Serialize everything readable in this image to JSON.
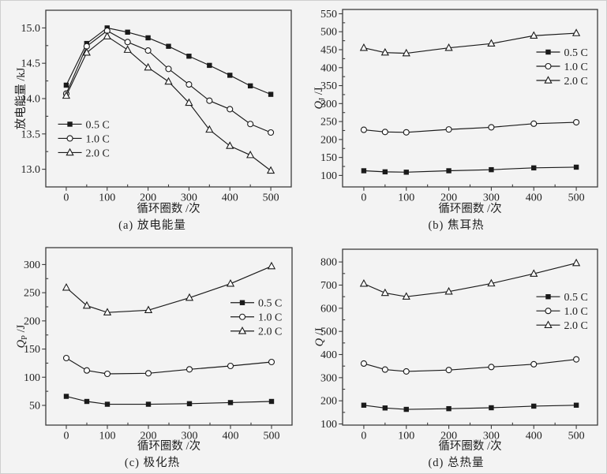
{
  "colors": {
    "background": "#f3f3f3",
    "line": "#1a1a1a",
    "frame": "#3c3c3c",
    "text": "#1f1f1f",
    "open_marker_fill": "#ffffff"
  },
  "chart_data": [
    {
      "type": "line",
      "caption": "(a) 放电能量",
      "xlabel": "循环圈数 /次",
      "ylabel": "放电能量 /kJ",
      "ylabel_rich": [
        {
          "t": "放电能量 /kJ"
        }
      ],
      "x": [
        0,
        50,
        100,
        150,
        200,
        250,
        300,
        350,
        400,
        450,
        500
      ],
      "xticks": [
        0,
        100,
        200,
        300,
        400,
        500
      ],
      "xminor_step": 50,
      "yticks": [
        13.0,
        13.5,
        14.0,
        14.5,
        15.0
      ],
      "yminor_step": 0.25,
      "ytick_decimals": 1,
      "xlim": [
        -50,
        550
      ],
      "ylim": [
        12.75,
        15.25
      ],
      "grid": false,
      "legend_position": {
        "x": 0.05,
        "y": 0.645
      },
      "series": [
        {
          "name": "0.5 C",
          "marker": "square-filled",
          "values": [
            14.19,
            14.78,
            15.0,
            14.94,
            14.86,
            14.74,
            14.6,
            14.47,
            14.33,
            14.18,
            14.06
          ]
        },
        {
          "name": "1.0 C",
          "marker": "circle-open",
          "values": [
            14.07,
            14.74,
            14.96,
            14.8,
            14.68,
            14.42,
            14.2,
            13.97,
            13.85,
            13.64,
            13.52
          ]
        },
        {
          "name": "2.0 C",
          "marker": "triangle-open",
          "values": [
            14.04,
            14.65,
            14.88,
            14.69,
            14.44,
            14.24,
            13.94,
            13.56,
            13.33,
            13.2,
            12.98
          ]
        }
      ]
    },
    {
      "type": "line",
      "caption": "(b) 焦耳热",
      "xlabel": "循环圈数 /次",
      "ylabel": "QJ /J",
      "ylabel_rich": [
        {
          "t": "Q",
          "i": true
        },
        {
          "t": "J",
          "sub": true
        },
        {
          "t": " /J"
        }
      ],
      "x": [
        0,
        50,
        100,
        200,
        300,
        400,
        500
      ],
      "xticks": [
        0,
        100,
        200,
        300,
        400,
        500
      ],
      "xminor_step": 50,
      "yticks": [
        100,
        150,
        200,
        250,
        300,
        350,
        400,
        450,
        500,
        550
      ],
      "yminor_step": 25,
      "ytick_decimals": 0,
      "xlim": [
        -50,
        550
      ],
      "ylim": [
        68,
        562
      ],
      "grid": false,
      "legend_position": {
        "x": 0.76,
        "y": 0.24
      },
      "series": [
        {
          "name": "0.5 C",
          "marker": "square-filled",
          "values": [
            113,
            110,
            109,
            113,
            116,
            121,
            123
          ]
        },
        {
          "name": "1.0 C",
          "marker": "circle-open",
          "values": [
            227,
            221,
            220,
            228,
            234,
            244,
            248
          ]
        },
        {
          "name": "2.0 C",
          "marker": "triangle-open",
          "values": [
            455,
            442,
            440,
            455,
            467,
            489,
            496
          ]
        }
      ]
    },
    {
      "type": "line",
      "caption": "(c) 极化热",
      "xlabel": "循环圈数 /次",
      "ylabel": "QP /J",
      "ylabel_rich": [
        {
          "t": "Q",
          "i": true
        },
        {
          "t": "P",
          "sub": true
        },
        {
          "t": " /J"
        }
      ],
      "x": [
        0,
        50,
        100,
        200,
        300,
        400,
        500
      ],
      "xticks": [
        0,
        100,
        200,
        300,
        400,
        500
      ],
      "xminor_step": 50,
      "yticks": [
        50,
        100,
        150,
        200,
        250,
        300
      ],
      "yminor_step": 25,
      "ytick_decimals": 0,
      "xlim": [
        -50,
        550
      ],
      "ylim": [
        15,
        330
      ],
      "grid": false,
      "legend_position": {
        "x": 0.75,
        "y": 0.31
      },
      "series": [
        {
          "name": "0.5 C",
          "marker": "square-filled",
          "values": [
            66,
            57,
            52,
            52,
            53,
            55,
            57
          ]
        },
        {
          "name": "1.0 C",
          "marker": "circle-open",
          "values": [
            134,
            112,
            106,
            107,
            114,
            120,
            127
          ]
        },
        {
          "name": "2.0 C",
          "marker": "triangle-open",
          "values": [
            259,
            227,
            215,
            219,
            241,
            266,
            297
          ]
        }
      ]
    },
    {
      "type": "line",
      "caption": "(d) 总热量",
      "xlabel": "循环圈数 /次",
      "ylabel": "Q /J",
      "ylabel_rich": [
        {
          "t": "Q",
          "i": true
        },
        {
          "t": " /J"
        }
      ],
      "x": [
        0,
        50,
        100,
        200,
        300,
        400,
        500
      ],
      "xticks": [
        0,
        100,
        200,
        300,
        400,
        500
      ],
      "xminor_step": 50,
      "yticks": [
        100,
        200,
        300,
        400,
        500,
        600,
        700,
        800
      ],
      "yminor_step": 50,
      "ytick_decimals": 0,
      "xlim": [
        -50,
        550
      ],
      "ylim": [
        95,
        855
      ],
      "grid": false,
      "legend_position": {
        "x": 0.76,
        "y": 0.27
      },
      "series": [
        {
          "name": "0.5 C",
          "marker": "square-filled",
          "values": [
            181,
            169,
            163,
            166,
            170,
            177,
            181
          ]
        },
        {
          "name": "1.0 C",
          "marker": "circle-open",
          "values": [
            361,
            335,
            327,
            333,
            346,
            358,
            379
          ]
        },
        {
          "name": "2.0 C",
          "marker": "triangle-open",
          "values": [
            706,
            666,
            650,
            672,
            707,
            749,
            795
          ]
        }
      ]
    }
  ]
}
